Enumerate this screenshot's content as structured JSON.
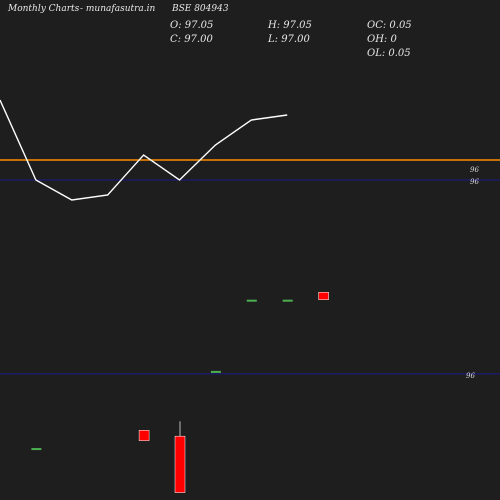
{
  "header": {
    "title": "Monthly Charts",
    "site": "- munafasutra.in",
    "symbol": "BSE 804943"
  },
  "ohlc": {
    "open": "O: 97.05",
    "close": "C: 97.00",
    "high": "H: 97.05",
    "low": "L: 97.00",
    "oc": "OC: 0.05",
    "oh": "OH: 0",
    "ol": "OL: 0.05"
  },
  "chart_data": [
    {
      "type": "line",
      "panel": "price",
      "x": [
        0,
        1,
        2,
        3,
        4,
        5,
        6,
        7,
        8
      ],
      "values": [
        96.6,
        95.8,
        95.6,
        95.65,
        96.05,
        95.8,
        96.15,
        96.4,
        96.45
      ],
      "ylim": [
        95.0,
        97.0
      ],
      "line_color": "#ffffff",
      "hlines": [
        {
          "value": 96,
          "label": "96",
          "color": "#ff8c00"
        },
        {
          "value": 95.8,
          "label": "96",
          "color": "#1a1a8c"
        }
      ],
      "grid": false
    },
    {
      "type": "bar",
      "panel": "candles",
      "x": [
        0,
        1,
        2,
        3,
        4,
        5,
        6,
        7,
        8
      ],
      "candles": [
        {
          "x": 1,
          "open": 96.0,
          "close": 96.0,
          "high": 96.0,
          "low": 96.0,
          "color": "#4caf50"
        },
        {
          "x": 4,
          "open": 96.12,
          "close": 96.05,
          "high": 96.12,
          "low": 96.05,
          "color": "#ff0000"
        },
        {
          "x": 5,
          "open": 96.08,
          "close": 95.7,
          "high": 96.18,
          "low": 95.7,
          "color": "#ff0000"
        },
        {
          "x": 6,
          "open": 96.52,
          "close": 96.52,
          "high": 96.52,
          "low": 96.52,
          "color": "#4caf50"
        },
        {
          "x": 7,
          "open": 97.0,
          "close": 97.0,
          "high": 97.0,
          "low": 97.0,
          "color": "#4caf50"
        },
        {
          "x": 8,
          "open": 97.0,
          "close": 97.0,
          "high": 97.0,
          "low": 97.0,
          "color": "#4caf50"
        },
        {
          "x": 9,
          "open": 97.05,
          "close": 97.0,
          "high": 97.05,
          "low": 97.0,
          "color": "#ff0000"
        }
      ],
      "hlines": [
        {
          "value": 96.5,
          "label": "96",
          "color": "#1a1a8c"
        }
      ],
      "ylim": [
        95.65,
        97.2
      ]
    }
  ]
}
